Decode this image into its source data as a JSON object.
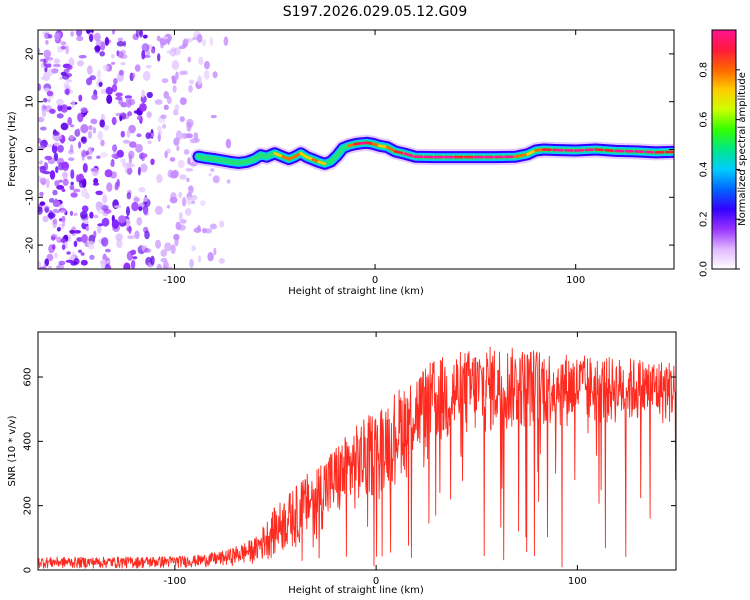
{
  "title": "S197.2026.029.05.12.G09",
  "chart_data": [
    {
      "type": "heatmap",
      "title": "S197.2026.029.05.12.G09",
      "xlabel": "Height of straight line (km)",
      "ylabel": "Frequency (Hz)",
      "xlim": [
        -168,
        149
      ],
      "ylim": [
        -25,
        25
      ],
      "xticks": [
        -100,
        0,
        100
      ],
      "yticks": [
        -20,
        -10,
        0,
        10,
        20
      ],
      "colorbar": {
        "label": "Normalized spectral amplitude",
        "range": [
          0,
          0.96
        ],
        "ticks": [
          0.0,
          0.2,
          0.4,
          0.6,
          0.8
        ],
        "tick_labels": [
          "0.0",
          "0.2",
          "0.4",
          "0.6",
          "0.8"
        ],
        "colors": [
          "#ffffff",
          "#e0b8ff",
          "#9933ff",
          "#3300ff",
          "#0066ff",
          "#00ccff",
          "#00e68a",
          "#33ff00",
          "#ccff00",
          "#ffcc00",
          "#ff6600",
          "#ff1a3c",
          "#ff1493"
        ]
      },
      "track": {
        "x": [
          -88,
          -84,
          -80,
          -76,
          -72,
          -68,
          -64,
          -60,
          -57,
          -54,
          -50,
          -46,
          -43,
          -40,
          -37,
          -34,
          -31,
          -28,
          -25,
          -22,
          -19,
          -16,
          -13,
          -10,
          -7,
          -4,
          -1,
          2,
          6,
          10,
          15,
          20,
          30,
          40,
          50,
          60,
          70,
          76,
          80,
          84,
          90,
          100,
          110,
          120,
          130,
          140,
          148
        ],
        "y": [
          -1.5,
          -1.8,
          -2,
          -2.3,
          -2.6,
          -2.8,
          -2.6,
          -2,
          -1.2,
          -1.5,
          -0.8,
          -1.5,
          -2,
          -1.5,
          -0.8,
          -1.6,
          -2.1,
          -2.6,
          -3,
          -2.5,
          -1.3,
          0.3,
          0.8,
          1.1,
          1.3,
          1.4,
          1.2,
          0.8,
          0.5,
          -0.4,
          -0.9,
          -1.5,
          -1.6,
          -1.6,
          -1.6,
          -1.6,
          -1.5,
          -1,
          -0.2,
          0,
          -0.1,
          -0.2,
          0,
          -0.3,
          -0.4,
          -0.6,
          -0.5
        ],
        "amplitude": [
          0.35,
          0.45,
          0.5,
          0.55,
          0.6,
          0.55,
          0.5,
          0.45,
          0.55,
          0.5,
          0.7,
          0.8,
          0.75,
          0.85,
          0.8,
          0.7,
          0.75,
          0.8,
          0.7,
          0.6,
          0.55,
          0.6,
          0.75,
          0.85,
          0.9,
          0.95,
          0.85,
          0.7,
          0.8,
          0.85,
          0.9,
          0.95,
          0.95,
          0.92,
          0.9,
          0.95,
          0.9,
          0.7,
          0.75,
          0.85,
          0.92,
          0.95,
          0.9,
          0.92,
          0.95,
          0.9,
          0.85
        ]
      },
      "noise_region_x": [
        -168,
        -65
      ]
    },
    {
      "type": "line",
      "xlabel": "Height of straight line (km)",
      "ylabel": "SNR (10 * v/v)",
      "xlim": [
        -168,
        149
      ],
      "ylim": [
        0,
        740
      ],
      "xticks": [
        -100,
        0,
        100
      ],
      "yticks": [
        0,
        200,
        400,
        600
      ],
      "series": [
        {
          "name": "SNR",
          "color": "#ff2a1f",
          "envelope_x": [
            -168,
            -140,
            -110,
            -90,
            -75,
            -60,
            -50,
            -40,
            -30,
            -20,
            -10,
            0,
            10,
            20,
            30,
            40,
            50,
            60,
            70,
            80,
            90,
            100,
            110,
            120,
            130,
            140,
            149
          ],
          "envelope_low": [
            5,
            5,
            5,
            8,
            12,
            20,
            40,
            70,
            110,
            150,
            180,
            230,
            280,
            340,
            370,
            390,
            410,
            420,
            430,
            440,
            440,
            445,
            445,
            450,
            450,
            450,
            450
          ],
          "envelope_high": [
            40,
            40,
            42,
            45,
            60,
            100,
            200,
            260,
            330,
            390,
            450,
            500,
            560,
            620,
            660,
            680,
            690,
            700,
            690,
            690,
            680,
            670,
            665,
            660,
            660,
            655,
            650
          ]
        }
      ]
    }
  ]
}
